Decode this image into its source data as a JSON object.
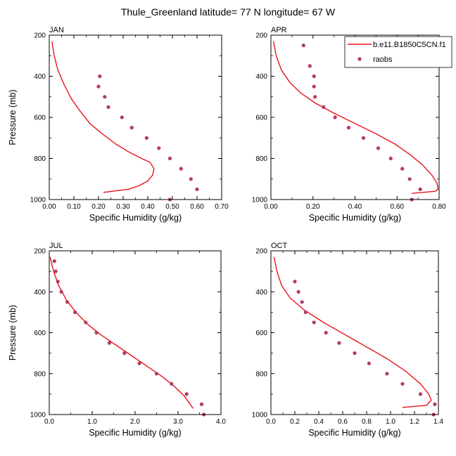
{
  "figure": {
    "title": "Thule_Greenland  latitude= 77 N longitude= 67 W"
  },
  "legend": {
    "model_label": "b.e11.B1850C5CN.f1",
    "obs_label": "raobs",
    "model_color": "#e8141e",
    "obs_color": "#b33a63"
  },
  "chart_data": [
    {
      "type": "line",
      "panel": "JAN",
      "xlabel": "Specific Humidity (g/kg)",
      "ylabel": "Pressure (mb)",
      "xlim": [
        0,
        0.7
      ],
      "ylim": [
        1000,
        200
      ],
      "y_reversed": true,
      "xticks": [
        0,
        0.1,
        0.2,
        0.3,
        0.4,
        0.5,
        0.6,
        0.7
      ],
      "xtick_labels": [
        "0.00",
        "0.10",
        "0.20",
        "0.30",
        "0.40",
        "0.50",
        "0.60",
        "0.70"
      ],
      "yticks": [
        200,
        400,
        600,
        800,
        1000
      ],
      "ytick_labels": [
        "200",
        "400",
        "600",
        "800",
        "1000"
      ],
      "series": [
        {
          "name": "b.e11.B1850C5CN.f1",
          "kind": "line",
          "x": [
            0.011,
            0.02,
            0.035,
            0.06,
            0.09,
            0.125,
            0.165,
            0.215,
            0.27,
            0.325,
            0.375,
            0.41,
            0.425,
            0.42,
            0.4,
            0.36,
            0.32,
            0.22
          ],
          "y": [
            230,
            300,
            370,
            440,
            510,
            570,
            630,
            680,
            730,
            770,
            800,
            820,
            850,
            880,
            910,
            935,
            950,
            965
          ]
        },
        {
          "name": "raobs",
          "kind": "scatter",
          "x": [
            0.205,
            0.2,
            0.225,
            0.24,
            0.295,
            0.335,
            0.395,
            0.445,
            0.49,
            0.535,
            0.575,
            0.6,
            0.49
          ],
          "y": [
            400,
            450,
            500,
            550,
            600,
            650,
            700,
            750,
            800,
            850,
            900,
            950,
            1000
          ]
        }
      ]
    },
    {
      "type": "line",
      "panel": "APR",
      "xlabel": "Specific Humidity (g/kg)",
      "ylabel": "",
      "xlim": [
        0,
        0.8
      ],
      "ylim": [
        1000,
        200
      ],
      "y_reversed": true,
      "xticks": [
        0,
        0.2,
        0.4,
        0.6,
        0.8
      ],
      "xtick_labels": [
        "0.00",
        "0.20",
        "0.40",
        "0.60",
        "0.80"
      ],
      "yticks": [
        200,
        400,
        600,
        800,
        1000
      ],
      "ytick_labels": [
        "200",
        "400",
        "600",
        "800",
        "1000"
      ],
      "series": [
        {
          "name": "b.e11.B1850C5CN.f1",
          "kind": "line",
          "x": [
            0.012,
            0.025,
            0.05,
            0.09,
            0.14,
            0.21,
            0.3,
            0.4,
            0.5,
            0.59,
            0.66,
            0.72,
            0.765,
            0.79,
            0.795,
            0.78,
            0.67
          ],
          "y": [
            230,
            300,
            370,
            430,
            480,
            530,
            580,
            630,
            680,
            730,
            780,
            830,
            880,
            920,
            950,
            960,
            970
          ]
        },
        {
          "name": "raobs",
          "kind": "scatter",
          "x": [
            0.155,
            0.185,
            0.205,
            0.205,
            0.21,
            0.25,
            0.305,
            0.37,
            0.44,
            0.51,
            0.57,
            0.625,
            0.66,
            0.71,
            0.67
          ],
          "y": [
            250,
            350,
            400,
            450,
            500,
            550,
            600,
            650,
            700,
            750,
            800,
            850,
            900,
            950,
            1000
          ]
        }
      ]
    },
    {
      "type": "line",
      "panel": "JUL",
      "xlabel": "Specific Humidity (g/kg)",
      "ylabel": "Pressure (mb)",
      "xlim": [
        0,
        4.0
      ],
      "ylim": [
        1000,
        200
      ],
      "y_reversed": true,
      "xticks": [
        0,
        1,
        2,
        3,
        4
      ],
      "xtick_labels": [
        "0.0",
        "1.0",
        "2.0",
        "3.0",
        "4.0"
      ],
      "yticks": [
        200,
        400,
        600,
        800,
        1000
      ],
      "ytick_labels": [
        "200",
        "400",
        "600",
        "800",
        "1000"
      ],
      "series": [
        {
          "name": "b.e11.B1850C5CN.f1",
          "kind": "line",
          "x": [
            0.02,
            0.1,
            0.22,
            0.4,
            0.62,
            0.9,
            1.2,
            1.55,
            1.9,
            2.25,
            2.6,
            2.9,
            3.15,
            3.35
          ],
          "y": [
            230,
            300,
            370,
            440,
            500,
            560,
            610,
            660,
            710,
            760,
            810,
            860,
            910,
            970
          ]
        },
        {
          "name": "raobs",
          "kind": "scatter",
          "x": [
            0.12,
            0.15,
            0.2,
            0.28,
            0.42,
            0.6,
            0.85,
            1.1,
            1.4,
            1.75,
            2.1,
            2.5,
            2.85,
            3.2,
            3.55,
            3.6
          ],
          "y": [
            250,
            300,
            350,
            400,
            450,
            500,
            550,
            600,
            650,
            700,
            750,
            800,
            850,
            900,
            950,
            1000
          ]
        }
      ]
    },
    {
      "type": "line",
      "panel": "OCT",
      "xlabel": "Specific Humidity (g/kg)",
      "ylabel": "",
      "xlim": [
        0,
        1.4
      ],
      "ylim": [
        1000,
        200
      ],
      "y_reversed": true,
      "xticks": [
        0,
        0.2,
        0.4,
        0.6,
        0.8,
        1.0,
        1.2,
        1.4
      ],
      "xtick_labels": [
        "0.0",
        "0.2",
        "0.4",
        "0.6",
        "0.8",
        "1.0",
        "1.2",
        "1.4"
      ],
      "yticks": [
        200,
        400,
        600,
        800,
        1000
      ],
      "ytick_labels": [
        "200",
        "400",
        "600",
        "800",
        "1000"
      ],
      "series": [
        {
          "name": "b.e11.B1850C5CN.f1",
          "kind": "line",
          "x": [
            0.025,
            0.05,
            0.09,
            0.16,
            0.28,
            0.44,
            0.62,
            0.8,
            0.98,
            1.13,
            1.25,
            1.32,
            1.34,
            1.3,
            1.1
          ],
          "y": [
            230,
            300,
            370,
            430,
            490,
            550,
            610,
            670,
            730,
            790,
            850,
            900,
            930,
            955,
            965
          ]
        },
        {
          "name": "raobs",
          "kind": "scatter",
          "x": [
            0.2,
            0.23,
            0.26,
            0.29,
            0.36,
            0.46,
            0.57,
            0.7,
            0.82,
            0.97,
            1.1,
            1.25,
            1.37,
            1.36
          ],
          "y": [
            350,
            400,
            450,
            500,
            550,
            600,
            650,
            700,
            750,
            800,
            850,
            900,
            950,
            1000
          ]
        }
      ]
    }
  ]
}
